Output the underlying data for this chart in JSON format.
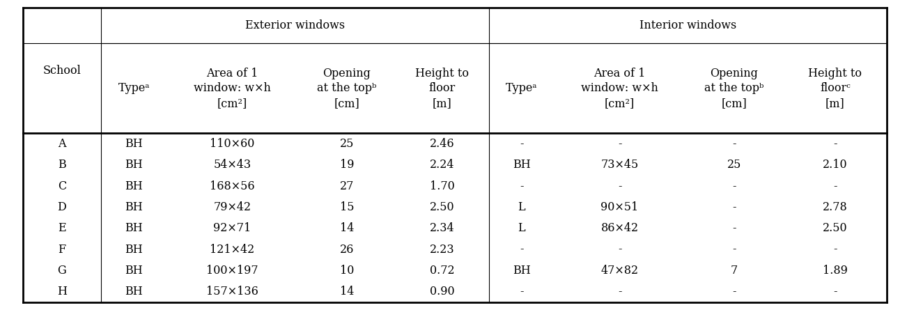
{
  "schools": [
    "A",
    "B",
    "C",
    "D",
    "E",
    "F",
    "G",
    "H"
  ],
  "ext_type": [
    "BH",
    "BH",
    "BH",
    "BH",
    "BH",
    "BH",
    "BH",
    "BH"
  ],
  "ext_area": [
    "110×60",
    "54×43",
    "168×56",
    "79×42",
    "92×71",
    "121×42",
    "100×197",
    "157×136"
  ],
  "ext_opening": [
    "25",
    "19",
    "27",
    "15",
    "14",
    "26",
    "10",
    "14"
  ],
  "ext_height": [
    "2.46",
    "2.24",
    "1.70",
    "2.50",
    "2.34",
    "2.23",
    "0.72",
    "0.90"
  ],
  "int_type": [
    "-",
    "BH",
    "-",
    "L",
    "L",
    "-",
    "BH",
    "-"
  ],
  "int_area": [
    "-",
    "73×45",
    "-",
    "90×51",
    "86×42",
    "-",
    "47×82",
    "-"
  ],
  "int_opening": [
    "-",
    "25",
    "-",
    "-",
    "-",
    "-",
    "7",
    "-"
  ],
  "int_height": [
    "-",
    "2.10",
    "-",
    "2.78",
    "2.50",
    "-",
    "1.89",
    "-"
  ],
  "col_header_row1_ext": "Exterior windows",
  "col_header_row1_int": "Interior windows",
  "col_header_school": "School",
  "col_headers_ext": [
    "Typeᵃ",
    "Area of 1\nwindow: w×h\n[cm²]",
    "Opening\nat the topᵇ\n[cm]",
    "Height to\nfloor\n[m]"
  ],
  "col_headers_int": [
    "Typeᵃ",
    "Area of 1\nwindow: w×h\n[cm²]",
    "Opening\nat the topᵇ\n[cm]",
    "Height to\nfloorᶜ\n[m]"
  ],
  "bg_color": "#ffffff",
  "text_color": "#000000",
  "line_color": "#000000",
  "font_size": 11.5,
  "header_font_size": 11.5
}
